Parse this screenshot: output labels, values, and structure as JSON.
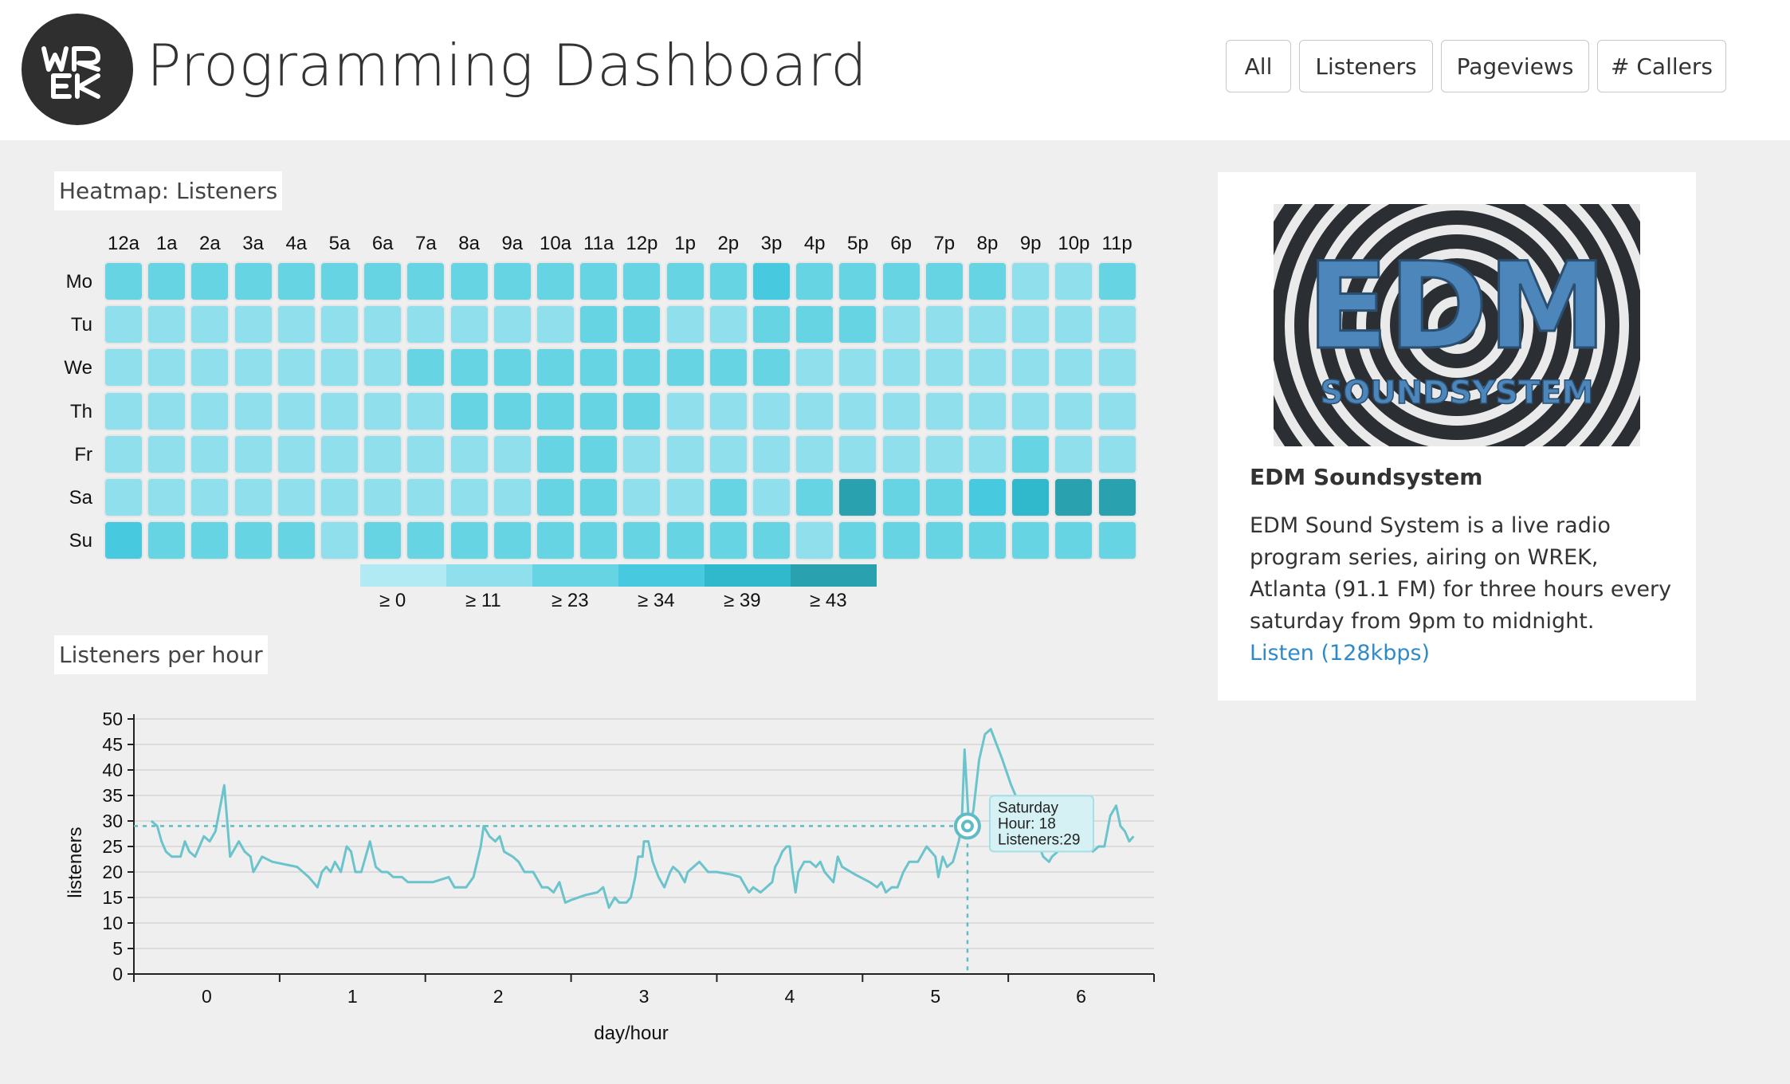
{
  "header": {
    "title": "Programming Dashboard",
    "logo_text": "WREK",
    "filters": [
      "All",
      "Listeners",
      "Pageviews",
      "# Callers"
    ]
  },
  "heatmap": {
    "title": "Heatmap: Listeners",
    "hours": [
      "12a",
      "1a",
      "2a",
      "3a",
      "4a",
      "5a",
      "6a",
      "7a",
      "8a",
      "9a",
      "10a",
      "11a",
      "12p",
      "1p",
      "2p",
      "3p",
      "4p",
      "5p",
      "6p",
      "7p",
      "8p",
      "9p",
      "10p",
      "11p"
    ],
    "days": [
      "Mo",
      "Tu",
      "We",
      "Th",
      "Fr",
      "Sa",
      "Su"
    ],
    "levels": [
      [
        2,
        2,
        2,
        2,
        2,
        2,
        2,
        2,
        2,
        2,
        2,
        2,
        2,
        2,
        2,
        3,
        2,
        2,
        2,
        2,
        2,
        1,
        1,
        2
      ],
      [
        1,
        1,
        1,
        1,
        1,
        1,
        1,
        1,
        1,
        1,
        1,
        2,
        2,
        1,
        1,
        2,
        2,
        2,
        1,
        1,
        1,
        1,
        1,
        1
      ],
      [
        1,
        1,
        1,
        1,
        1,
        1,
        1,
        2,
        2,
        2,
        2,
        2,
        2,
        2,
        2,
        2,
        1,
        1,
        1,
        1,
        1,
        1,
        1,
        1
      ],
      [
        1,
        1,
        1,
        1,
        1,
        1,
        1,
        1,
        2,
        2,
        2,
        2,
        2,
        1,
        1,
        1,
        1,
        1,
        1,
        1,
        1,
        1,
        1,
        1
      ],
      [
        1,
        1,
        1,
        1,
        1,
        1,
        1,
        1,
        1,
        1,
        2,
        2,
        1,
        1,
        1,
        1,
        1,
        1,
        1,
        1,
        1,
        2,
        1,
        1
      ],
      [
        1,
        1,
        1,
        1,
        1,
        1,
        1,
        1,
        1,
        1,
        2,
        2,
        1,
        1,
        2,
        1,
        2,
        5,
        2,
        2,
        3,
        4,
        5,
        5
      ],
      [
        3,
        2,
        2,
        2,
        2,
        1,
        2,
        2,
        2,
        2,
        2,
        2,
        2,
        2,
        2,
        2,
        1,
        2,
        2,
        2,
        2,
        2,
        2,
        2
      ]
    ],
    "legend": [
      "≥ 0",
      "≥ 11",
      "≥ 23",
      "≥ 34",
      "≥ 39",
      "≥ 43"
    ],
    "legend_colors": [
      "#b2eaf3",
      "#8fdfec",
      "#66d4e3",
      "#47cadf",
      "#30b9cc",
      "#2aa1ae"
    ]
  },
  "line_section_title": "Listeners per hour",
  "chart_data": {
    "type": "line",
    "title": "Listeners per hour",
    "xlabel": "day/hour",
    "ylabel": "listeners",
    "xlim": [
      -0.5,
      6.5
    ],
    "ylim": [
      0,
      50
    ],
    "x_ticks": [
      0,
      1,
      2,
      3,
      4,
      5,
      6
    ],
    "y_ticks": [
      0,
      5,
      10,
      15,
      20,
      25,
      30,
      35,
      40,
      45,
      50
    ],
    "grid": true,
    "color": "#6bc4cc",
    "points": [
      [
        -0.38,
        30
      ],
      [
        -0.34,
        29
      ],
      [
        -0.31,
        26
      ],
      [
        -0.28,
        24
      ],
      [
        -0.24,
        23
      ],
      [
        -0.18,
        23
      ],
      [
        -0.15,
        26
      ],
      [
        -0.12,
        24
      ],
      [
        -0.08,
        23
      ],
      [
        -0.02,
        27
      ],
      [
        0.02,
        26
      ],
      [
        0.06,
        28
      ],
      [
        0.12,
        37
      ],
      [
        0.16,
        23
      ],
      [
        0.22,
        26
      ],
      [
        0.26,
        24
      ],
      [
        0.3,
        23
      ],
      [
        0.32,
        20
      ],
      [
        0.38,
        23
      ],
      [
        0.45,
        22
      ],
      [
        0.62,
        21
      ],
      [
        0.7,
        19
      ],
      [
        0.76,
        17
      ],
      [
        0.79,
        20
      ],
      [
        0.82,
        21
      ],
      [
        0.85,
        20
      ],
      [
        0.88,
        22
      ],
      [
        0.92,
        20
      ],
      [
        0.96,
        25
      ],
      [
        0.99,
        24
      ],
      [
        1.02,
        20
      ],
      [
        1.06,
        20
      ],
      [
        1.12,
        26
      ],
      [
        1.16,
        21
      ],
      [
        1.2,
        20
      ],
      [
        1.24,
        20
      ],
      [
        1.28,
        19
      ],
      [
        1.34,
        19
      ],
      [
        1.38,
        18
      ],
      [
        1.55,
        18
      ],
      [
        1.66,
        19
      ],
      [
        1.7,
        17
      ],
      [
        1.78,
        17
      ],
      [
        1.83,
        19
      ],
      [
        1.88,
        25
      ],
      [
        1.9,
        29
      ],
      [
        1.94,
        27
      ],
      [
        1.98,
        26
      ],
      [
        2.01,
        27
      ],
      [
        2.04,
        24
      ],
      [
        2.1,
        23
      ],
      [
        2.14,
        22
      ],
      [
        2.18,
        20
      ],
      [
        2.24,
        20
      ],
      [
        2.26,
        19
      ],
      [
        2.3,
        17
      ],
      [
        2.34,
        17
      ],
      [
        2.38,
        16
      ],
      [
        2.42,
        18
      ],
      [
        2.46,
        14
      ],
      [
        2.5,
        14.5
      ],
      [
        2.6,
        15.5
      ],
      [
        2.68,
        16
      ],
      [
        2.72,
        17
      ],
      [
        2.76,
        13
      ],
      [
        2.8,
        15
      ],
      [
        2.83,
        14
      ],
      [
        2.88,
        14
      ],
      [
        2.91,
        15
      ],
      [
        2.94,
        19
      ],
      [
        2.96,
        23
      ],
      [
        2.99,
        23
      ],
      [
        3.0,
        26
      ],
      [
        3.03,
        26
      ],
      [
        3.06,
        22
      ],
      [
        3.1,
        19
      ],
      [
        3.14,
        17
      ],
      [
        3.18,
        20
      ],
      [
        3.2,
        21
      ],
      [
        3.24,
        20
      ],
      [
        3.28,
        18
      ],
      [
        3.3,
        20
      ],
      [
        3.34,
        21
      ],
      [
        3.38,
        22
      ],
      [
        3.44,
        20
      ],
      [
        3.5,
        20
      ],
      [
        3.6,
        19.5
      ],
      [
        3.66,
        19
      ],
      [
        3.72,
        16
      ],
      [
        3.75,
        17
      ],
      [
        3.8,
        16
      ],
      [
        3.84,
        17
      ],
      [
        3.88,
        18
      ],
      [
        3.9,
        21
      ],
      [
        3.92,
        22
      ],
      [
        3.95,
        24
      ],
      [
        3.98,
        25
      ],
      [
        4.0,
        25
      ],
      [
        4.02,
        20
      ],
      [
        4.04,
        16
      ],
      [
        4.06,
        20
      ],
      [
        4.1,
        22
      ],
      [
        4.14,
        22
      ],
      [
        4.18,
        21
      ],
      [
        4.21,
        22
      ],
      [
        4.24,
        20
      ],
      [
        4.27,
        19
      ],
      [
        4.3,
        18
      ],
      [
        4.33,
        23
      ],
      [
        4.36,
        21
      ],
      [
        4.45,
        19.5
      ],
      [
        4.55,
        18
      ],
      [
        4.6,
        17
      ],
      [
        4.63,
        18
      ],
      [
        4.66,
        16
      ],
      [
        4.7,
        17
      ],
      [
        4.74,
        17
      ],
      [
        4.78,
        20
      ],
      [
        4.82,
        22
      ],
      [
        4.85,
        22
      ],
      [
        4.88,
        22
      ],
      [
        4.9,
        23
      ],
      [
        4.94,
        25
      ],
      [
        4.97,
        24
      ],
      [
        5.0,
        23
      ],
      [
        5.02,
        19
      ],
      [
        5.05,
        23
      ],
      [
        5.08,
        21
      ],
      [
        5.12,
        22
      ],
      [
        5.16,
        26
      ],
      [
        5.18,
        29
      ],
      [
        5.2,
        44
      ],
      [
        5.23,
        29
      ],
      [
        5.26,
        32
      ],
      [
        5.3,
        42
      ],
      [
        5.34,
        47
      ],
      [
        5.38,
        48
      ],
      [
        5.46,
        42
      ],
      [
        5.52,
        37
      ],
      [
        5.58,
        33
      ],
      [
        5.65,
        30
      ],
      [
        5.7,
        26
      ],
      [
        5.74,
        23
      ],
      [
        5.78,
        22
      ],
      [
        5.8,
        23
      ],
      [
        5.84,
        24
      ],
      [
        5.88,
        26
      ],
      [
        5.92,
        28
      ],
      [
        5.96,
        26
      ],
      [
        6.0,
        28
      ],
      [
        6.04,
        27
      ],
      [
        6.08,
        24
      ],
      [
        6.12,
        25
      ],
      [
        6.16,
        25
      ],
      [
        6.2,
        31
      ],
      [
        6.24,
        33
      ],
      [
        6.27,
        29
      ],
      [
        6.3,
        28
      ],
      [
        6.33,
        26
      ],
      [
        6.36,
        27
      ]
    ],
    "crosshair": {
      "x": 5.22,
      "y": 29
    },
    "tooltip": {
      "day": "Saturday",
      "hour": "Hour: 18",
      "listeners": "Listeners:29"
    }
  },
  "program": {
    "name": "EDM Soundsystem",
    "image_title": "EDM",
    "image_subtitle": "SOUNDSYSTEM",
    "description": "EDM Sound System is a live radio program series, airing on WREK, Atlanta (91.1 FM) for three hours every saturday from 9pm to midnight.",
    "listen_link": "Listen (128kbps)"
  }
}
